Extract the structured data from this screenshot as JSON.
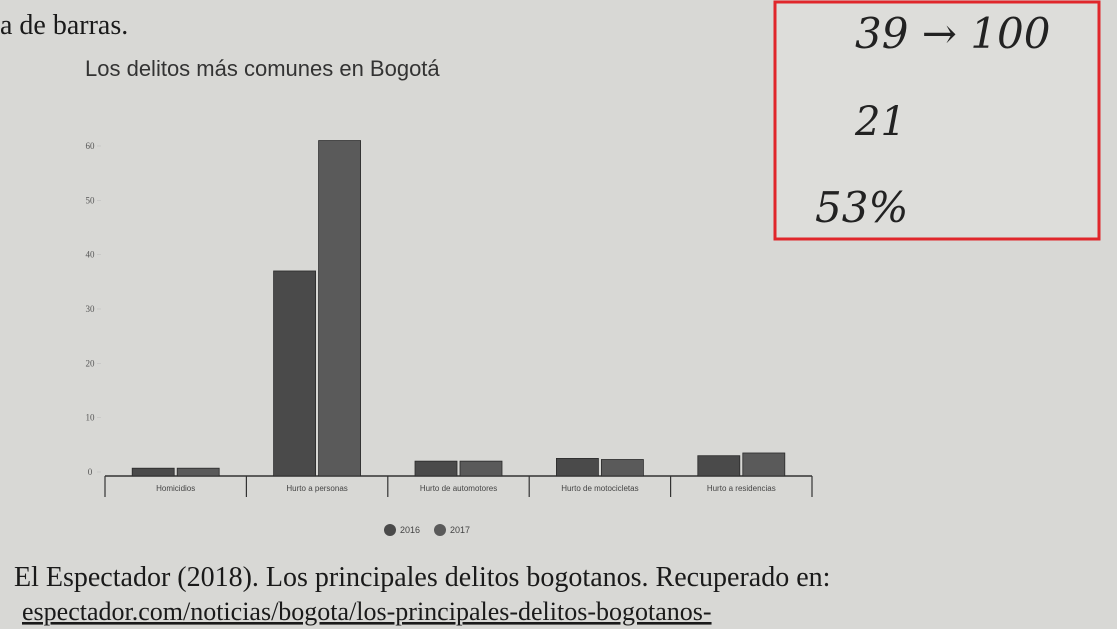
{
  "header_text": "a de barras.",
  "chart_data": {
    "type": "bar",
    "title": "Los delitos más comunes en Bogotá",
    "categories": [
      "Homicidios",
      "Hurto a personas",
      "Hurto de automotores",
      "Hurto de motocicletas",
      "Hurto a residencias"
    ],
    "series": [
      {
        "name": "2016",
        "color": "#4a4a4a",
        "values": [
          0.7,
          37,
          2,
          2.5,
          3
        ]
      },
      {
        "name": "2017",
        "color": "#5a5a5a",
        "values": [
          0.7,
          61,
          2,
          2.3,
          3.5
        ]
      }
    ],
    "ylim": [
      0,
      60
    ],
    "yticks": [
      0,
      10,
      20,
      30,
      40,
      50,
      60
    ]
  },
  "annotations": [
    "39 → 100",
    "21",
    "53%"
  ],
  "source_text": "El Espectador (2018). Los principales delitos bogotanos. Recuperado en:",
  "url_text": "espectador.com/noticias/bogota/los-principales-delitos-bogotanos-"
}
